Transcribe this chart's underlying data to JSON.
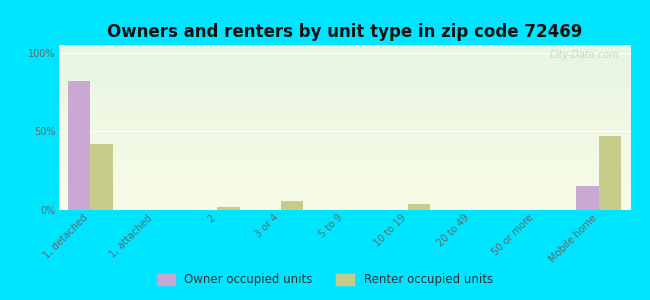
{
  "title": "Owners and renters by unit type in zip code 72469",
  "categories": [
    "1, detached",
    "1, attached",
    "2",
    "3 or 4",
    "5 to 9",
    "10 to 19",
    "20 to 49",
    "50 or more",
    "Mobile home"
  ],
  "owner_values": [
    82,
    0,
    0,
    0,
    0,
    0,
    0,
    0,
    15
  ],
  "renter_values": [
    42,
    0,
    2,
    6,
    0,
    4,
    0,
    0,
    47
  ],
  "owner_color": "#c9a8d4",
  "renter_color": "#c8cc8a",
  "background_color": "#00e5ff",
  "plot_bg_top": "#e8f5e0",
  "plot_bg_bottom": "#f7fce8",
  "ytick_labels": [
    "0%",
    "50%",
    "100%"
  ],
  "ytick_values": [
    0,
    50,
    100
  ],
  "ylim": [
    0,
    105
  ],
  "legend_owner": "Owner occupied units",
  "legend_renter": "Renter occupied units",
  "bar_width": 0.35,
  "title_fontsize": 12,
  "tick_fontsize": 7,
  "legend_fontsize": 8.5
}
